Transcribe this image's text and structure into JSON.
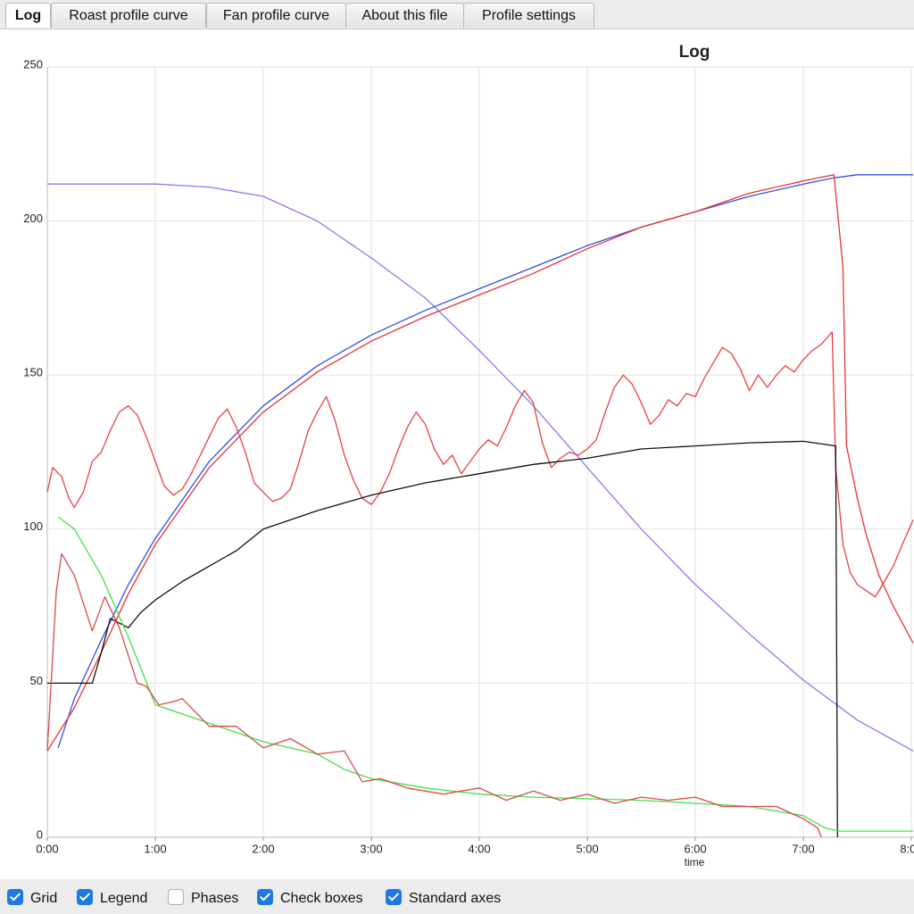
{
  "tabs": [
    "Log",
    "Roast profile curve",
    "Fan profile curve",
    "About this file",
    "Profile settings"
  ],
  "active_tab": 0,
  "chart_data": {
    "type": "line",
    "title": "Log",
    "x_label": "time",
    "grid": true,
    "xlim": [
      0,
      481
    ],
    "ylim": [
      0,
      250
    ],
    "xticks": [
      {
        "value": 0,
        "label": "0:00"
      },
      {
        "value": 60,
        "label": "1:00"
      },
      {
        "value": 120,
        "label": "2:00"
      },
      {
        "value": 180,
        "label": "3:00"
      },
      {
        "value": 240,
        "label": "4:00"
      },
      {
        "value": 300,
        "label": "5:00"
      },
      {
        "value": 360,
        "label": "6:00"
      },
      {
        "value": 420,
        "label": "7:00"
      },
      {
        "value": 480,
        "label": "8:00"
      }
    ],
    "yticks": [
      0,
      50,
      100,
      150,
      200,
      250
    ],
    "series": [
      {
        "color": "#7f7ff0",
        "x": [
          0,
          60,
          90,
          120,
          150,
          180,
          210,
          240,
          270,
          300,
          330,
          360,
          390,
          420,
          450,
          481
        ],
        "values": [
          212,
          212,
          211,
          208,
          200,
          188,
          175,
          158,
          140,
          120,
          100,
          82,
          66,
          51,
          38,
          28
        ]
      },
      {
        "color": "#2f50e0",
        "x": [
          6,
          15,
          30,
          45,
          60,
          90,
          120,
          150,
          180,
          210,
          240,
          270,
          300,
          330,
          360,
          390,
          420,
          437,
          450,
          481
        ],
        "values": [
          29,
          45,
          64,
          82,
          97,
          122,
          140,
          153,
          163,
          171,
          178,
          185,
          192,
          198,
          203,
          208,
          212,
          214,
          215,
          215
        ]
      },
      {
        "color": "#e83030",
        "x": [
          0,
          15,
          30,
          45,
          60,
          90,
          120,
          150,
          180,
          210,
          240,
          270,
          300,
          330,
          360,
          390,
          420,
          437,
          442,
          444,
          450,
          455,
          462,
          470,
          481
        ],
        "values": [
          28,
          42,
          60,
          79,
          95,
          120,
          138,
          151,
          161,
          169,
          176,
          183,
          191,
          198,
          203,
          209,
          213,
          215,
          185,
          127,
          110,
          98,
          85,
          75,
          63
        ]
      },
      {
        "color": "#e84040",
        "x": [
          0,
          3,
          8,
          12,
          15,
          20,
          25,
          30,
          35,
          40,
          45,
          50,
          55,
          60,
          65,
          70,
          75,
          80,
          85,
          90,
          95,
          100,
          105,
          110,
          115,
          120,
          125,
          130,
          135,
          140,
          145,
          150,
          155,
          160,
          165,
          170,
          175,
          180,
          185,
          190,
          195,
          200,
          205,
          210,
          215,
          220,
          225,
          230,
          235,
          240,
          245,
          250,
          255,
          260,
          265,
          270,
          275,
          280,
          285,
          290,
          295,
          300,
          305,
          310,
          315,
          320,
          325,
          330,
          335,
          340,
          345,
          350,
          355,
          360,
          365,
          370,
          375,
          380,
          385,
          390,
          395,
          400,
          405,
          410,
          415,
          420,
          425,
          430,
          436,
          438,
          442,
          446,
          450,
          455,
          460,
          465,
          470,
          475,
          481
        ],
        "values": [
          112,
          120,
          117,
          110,
          107,
          112,
          122,
          125,
          132,
          138,
          140,
          137,
          130,
          122,
          114,
          111,
          113,
          118,
          124,
          130,
          136,
          139,
          133,
          125,
          115,
          112,
          109,
          110,
          113,
          122,
          132,
          138,
          143,
          135,
          124,
          116,
          110,
          108,
          112,
          118,
          126,
          133,
          138,
          134,
          126,
          121,
          124,
          118,
          122,
          126,
          129,
          127,
          133,
          140,
          145,
          141,
          128,
          120,
          123,
          125,
          124,
          126,
          129,
          138,
          146,
          150,
          147,
          141,
          134,
          137,
          142,
          140,
          144,
          143,
          149,
          154,
          159,
          157,
          152,
          145,
          150,
          146,
          150,
          153,
          151,
          155,
          158,
          160,
          164,
          120,
          95,
          86,
          82,
          80,
          78,
          83,
          88,
          95,
          103
        ]
      },
      {
        "color": "#111111",
        "x": [
          0,
          25,
          30,
          35,
          45,
          52,
          60,
          75,
          90,
          105,
          120,
          150,
          180,
          210,
          240,
          270,
          300,
          330,
          360,
          390,
          420,
          438,
          439
        ],
        "values": [
          50,
          50,
          60,
          71,
          68,
          73,
          77,
          83,
          88,
          93,
          100,
          106,
          111,
          115,
          118,
          121,
          123,
          126,
          127,
          128,
          128.5,
          127,
          0
        ]
      },
      {
        "color": "#44e044",
        "x": [
          6,
          15,
          30,
          45,
          60,
          90,
          120,
          150,
          165,
          180,
          210,
          240,
          270,
          300,
          330,
          360,
          390,
          420,
          432,
          440,
          460,
          481
        ],
        "values": [
          104,
          100,
          85,
          65,
          43,
          37,
          31,
          27,
          22,
          19,
          16,
          14,
          13,
          12.5,
          12,
          11,
          10,
          7,
          3,
          2,
          2,
          2
        ]
      },
      {
        "color": "#d84a4a",
        "x": [
          0,
          5,
          8,
          15,
          25,
          32,
          40,
          50,
          55,
          62,
          70,
          75,
          90,
          105,
          120,
          135,
          150,
          165,
          175,
          185,
          200,
          220,
          240,
          255,
          270,
          285,
          300,
          315,
          330,
          345,
          360,
          375,
          390,
          405,
          420,
          428,
          430
        ],
        "values": [
          28,
          80,
          92,
          85,
          67,
          78,
          68,
          50,
          49,
          43,
          44,
          45,
          36,
          36,
          29,
          32,
          27,
          28,
          18,
          19,
          16,
          14,
          16,
          12,
          15,
          12,
          14,
          11,
          13,
          12,
          13,
          10,
          10,
          10,
          6,
          3,
          0
        ]
      }
    ]
  },
  "checkboxes": [
    {
      "label": "Grid",
      "checked": true
    },
    {
      "label": "Legend",
      "checked": true
    },
    {
      "label": "Phases",
      "checked": false
    },
    {
      "label": "Check boxes",
      "checked": true
    },
    {
      "label": "Standard axes",
      "checked": true
    }
  ]
}
